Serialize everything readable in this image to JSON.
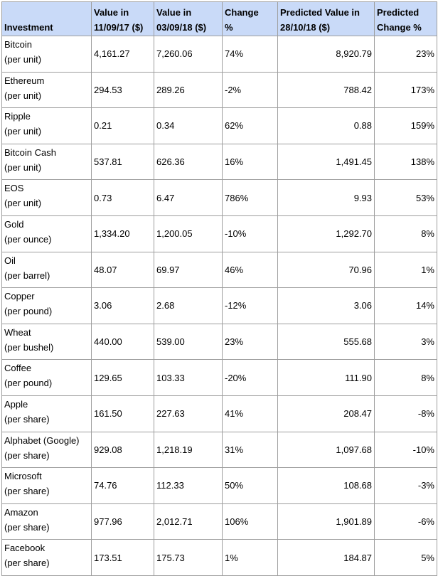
{
  "table": {
    "header": [
      [
        "Investment"
      ],
      [
        "Value in",
        "11/09/17 ($)"
      ],
      [
        "Value in",
        "03/09/18 ($)"
      ],
      [
        "Change",
        "%"
      ],
      [
        "Predicted Value in",
        "28/10/18 ($)"
      ],
      [
        "Predicted",
        "Change %"
      ]
    ],
    "rows": [
      {
        "name": "Bitcoin",
        "unit": "(per unit)",
        "cells": [
          "4,161.27",
          "7,260.06",
          "74%",
          "8,920.79",
          "23%"
        ]
      },
      {
        "name": "Ethereum",
        "unit": "(per unit)",
        "cells": [
          "294.53",
          "289.26",
          "-2%",
          "788.42",
          "173%"
        ]
      },
      {
        "name": "Ripple",
        "unit": "(per unit)",
        "cells": [
          "0.21",
          "0.34",
          "62%",
          "0.88",
          "159%"
        ]
      },
      {
        "name": "Bitcoin Cash",
        "unit": "(per unit)",
        "cells": [
          "537.81",
          "626.36",
          "16%",
          "1,491.45",
          "138%"
        ]
      },
      {
        "name": "EOS",
        "unit": "(per unit)",
        "cells": [
          "0.73",
          "6.47",
          "786%",
          "9.93",
          "53%"
        ]
      },
      {
        "name": "Gold",
        "unit": "(per ounce)",
        "cells": [
          "1,334.20",
          "1,200.05",
          "-10%",
          "1,292.70",
          "8%"
        ]
      },
      {
        "name": "Oil",
        "unit": "(per barrel)",
        "cells": [
          "48.07",
          "69.97",
          "46%",
          "70.96",
          "1%"
        ]
      },
      {
        "name": "Copper",
        "unit": "(per pound)",
        "cells": [
          "3.06",
          "2.68",
          "-12%",
          "3.06",
          "14%"
        ]
      },
      {
        "name": "Wheat",
        "unit": "(per bushel)",
        "cells": [
          "440.00",
          "539.00",
          "23%",
          "555.68",
          "3%"
        ]
      },
      {
        "name": "Coffee",
        "unit": "(per pound)",
        "cells": [
          "129.65",
          "103.33",
          "-20%",
          "111.90",
          "8%"
        ]
      },
      {
        "name": "Apple",
        "unit": "(per share)",
        "cells": [
          "161.50",
          "227.63",
          "41%",
          "208.47",
          "-8%"
        ]
      },
      {
        "name": "Alphabet (Google)",
        "unit": "(per share)",
        "cells": [
          "929.08",
          "1,218.19",
          "31%",
          "1,097.68",
          "-10%"
        ]
      },
      {
        "name": "Microsoft",
        "unit": "(per share)",
        "cells": [
          "74.76",
          "112.33",
          "50%",
          "108.68",
          "-3%"
        ]
      },
      {
        "name": "Amazon",
        "unit": "(per share)",
        "cells": [
          "977.96",
          "2,012.71",
          "106%",
          "1,901.89",
          "-6%"
        ]
      },
      {
        "name": "Facebook",
        "unit": "(per share)",
        "cells": [
          "173.51",
          "175.73",
          "1%",
          "184.87",
          "5%"
        ]
      }
    ]
  }
}
